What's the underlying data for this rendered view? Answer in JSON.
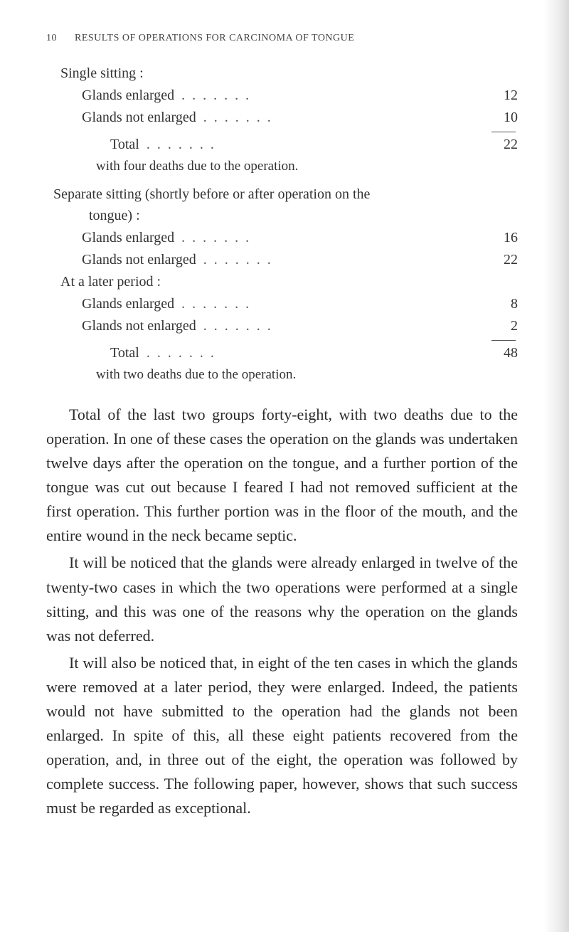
{
  "page": {
    "number": "10",
    "running_head": "RESULTS OF OPERATIONS FOR CARCINOMA OF TONGUE"
  },
  "block1": {
    "title": "Single sitting :",
    "r1_label": "Glands enlarged",
    "r1_val": "12",
    "r2_label": "Glands not enlarged",
    "r2_val": "10",
    "total_label": "Total",
    "total_val": "22",
    "note": "with four deaths due to the operation."
  },
  "block2": {
    "title1": "Separate sitting (shortly before or after operation on the",
    "title2": "tongue) :",
    "r1_label": "Glands enlarged",
    "r1_val": "16",
    "r2_label": "Glands not enlarged",
    "r2_val": "22",
    "sub_title": "At a later period :",
    "r3_label": "Glands enlarged",
    "r3_val": "8",
    "r4_label": "Glands not enlarged",
    "r4_val": "2",
    "total_label": "Total",
    "total_val": "48",
    "note": "with two deaths due to the operation."
  },
  "body": {
    "p1": "Total of the last two groups forty-eight, with two deaths due to the operation. In one of these cases the operation on the glands was undertaken twelve days after the operation on the tongue, and a further portion of the tongue was cut out because I feared I had not removed sufficient at the first operation. This further portion was in the floor of the mouth, and the entire wound in the neck became septic.",
    "p2": "It will be noticed that the glands were already enlarged in twelve of the twenty-two cases in which the two operations were performed at a single sitting, and this was one of the reasons why the operation on the glands was not deferred.",
    "p3": "It will also be noticed that, in eight of the ten cases in which the glands were removed at a later period, they were enlarged. Indeed, the patients would not have submitted to the operation had the glands not been enlarged. In spite of this, all these eight patients recovered from the operation, and, in three out of the eight, the operation was followed by complete success. The following paper, however, shows that such success must be regarded as exceptional."
  },
  "dots": "......."
}
